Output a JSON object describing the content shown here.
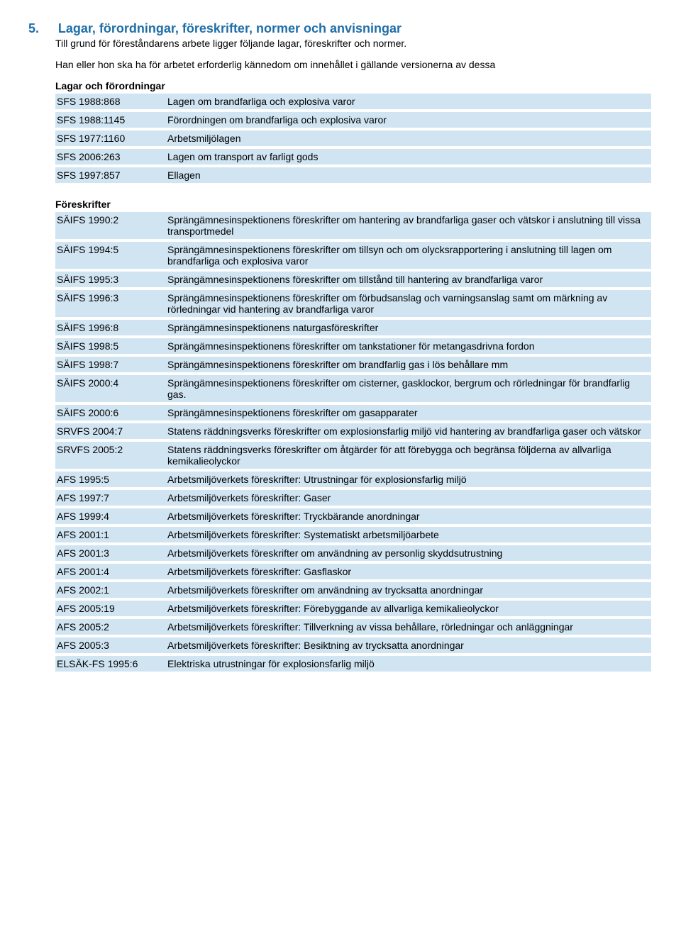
{
  "section": {
    "number": "5.",
    "title": "Lagar, förordningar, föreskrifter, normer och anvisningar",
    "intro": "Till grund för föreståndarens arbete ligger följande lagar, föreskrifter och normer.",
    "preamble": "Han eller hon ska ha för arbetet erforderlig kännedom om innehållet i gällande versionerna av dessa"
  },
  "group1": {
    "heading": "Lagar och förordningar",
    "rows": [
      {
        "code": "SFS 1988:868",
        "text": "Lagen om brandfarliga och explosiva varor"
      },
      {
        "code": "SFS 1988:1145",
        "text": "Förordningen om brandfarliga och explosiva varor"
      },
      {
        "code": "SFS 1977:1160",
        "text": "Arbetsmiljölagen"
      },
      {
        "code": "SFS 2006:263",
        "text": "Lagen om transport av farligt gods"
      },
      {
        "code": "SFS 1997:857",
        "text": "Ellagen"
      }
    ]
  },
  "group2": {
    "heading": "Föreskrifter",
    "rows": [
      {
        "code": "SÄIFS 1990:2",
        "text": "Sprängämnesinspektionens föreskrifter om hantering av brandfarliga gaser och vätskor i anslutning till vissa transportmedel"
      },
      {
        "code": "SÄIFS 1994:5",
        "text": "Sprängämnesinspektionens föreskrifter om tillsyn och om olycksrapportering i anslutning till lagen om brandfarliga och explosiva varor"
      },
      {
        "code": "SÄIFS 1995:3",
        "text": "Sprängämnesinspektionens föreskrifter om tillstånd till hantering av brandfarliga varor"
      },
      {
        "code": "SÄIFS 1996:3",
        "text": "Sprängämnesinspektionens föreskrifter om förbudsanslag och varningsanslag samt om märkning av rörledningar vid hantering av brandfarliga varor"
      },
      {
        "code": "SÄIFS 1996:8",
        "text": "Sprängämnesinspektionens naturgasföreskrifter"
      },
      {
        "code": "SÄIFS 1998:5",
        "text": "Sprängämnesinspektionens föreskrifter om tankstationer för metangasdrivna fordon"
      },
      {
        "code": "SÄIFS 1998:7",
        "text": "Sprängämnesinspektionens föreskrifter om brandfarlig gas i lös behållare mm"
      },
      {
        "code": "SÄIFS 2000:4",
        "text": "Sprängämnesinspektionens föreskrifter om cisterner, gasklockor, bergrum och rörledningar för brandfarlig gas."
      },
      {
        "code": "SÄIFS 2000:6",
        "text": "Sprängämnesinspektionens föreskrifter om gasapparater"
      },
      {
        "code": "SRVFS 2004:7",
        "text": "Statens räddningsverks föreskrifter om explosionsfarlig miljö vid hantering av brandfarliga gaser och vätskor"
      },
      {
        "code": "SRVFS 2005:2",
        "text": "Statens räddningsverks föreskrifter om åtgärder för att förebygga och begränsa följderna av allvarliga kemikalieolyckor"
      },
      {
        "code": "AFS 1995:5",
        "text": "Arbetsmiljöverkets föreskrifter: Utrustningar för explosionsfarlig miljö"
      },
      {
        "code": "AFS 1997:7",
        "text": "Arbetsmiljöverkets föreskrifter: Gaser"
      },
      {
        "code": "AFS 1999:4",
        "text": "Arbetsmiljöverkets föreskrifter: Tryckbärande anordningar"
      },
      {
        "code": "AFS 2001:1",
        "text": "Arbetsmiljöverkets föreskrifter: Systematiskt arbetsmiljöarbete"
      },
      {
        "code": "AFS 2001:3",
        "text": "Arbetsmiljöverkets föreskrifter om användning av personlig skyddsutrustning"
      },
      {
        "code": "AFS 2001:4",
        "text": "Arbetsmiljöverkets föreskrifter: Gasflaskor"
      },
      {
        "code": "AFS 2002:1",
        "text": "Arbetsmiljöverkets föreskrifter om användning av trycksatta anordningar"
      },
      {
        "code": "AFS 2005:19",
        "text": "Arbetsmiljöverkets föreskrifter: Förebyggande av allvarliga kemikalieolyckor"
      },
      {
        "code": "AFS 2005:2",
        "text": "Arbetsmiljöverkets föreskrifter: Tillverkning av vissa behållare, rörledningar och anläggningar"
      },
      {
        "code": "AFS 2005:3",
        "text": "Arbetsmiljöverkets föreskrifter: Besiktning av trycksatta anordningar"
      },
      {
        "code": "ELSÄK-FS 1995:6",
        "text": "Elektriska utrustningar för explosionsfarlig miljö"
      }
    ]
  }
}
